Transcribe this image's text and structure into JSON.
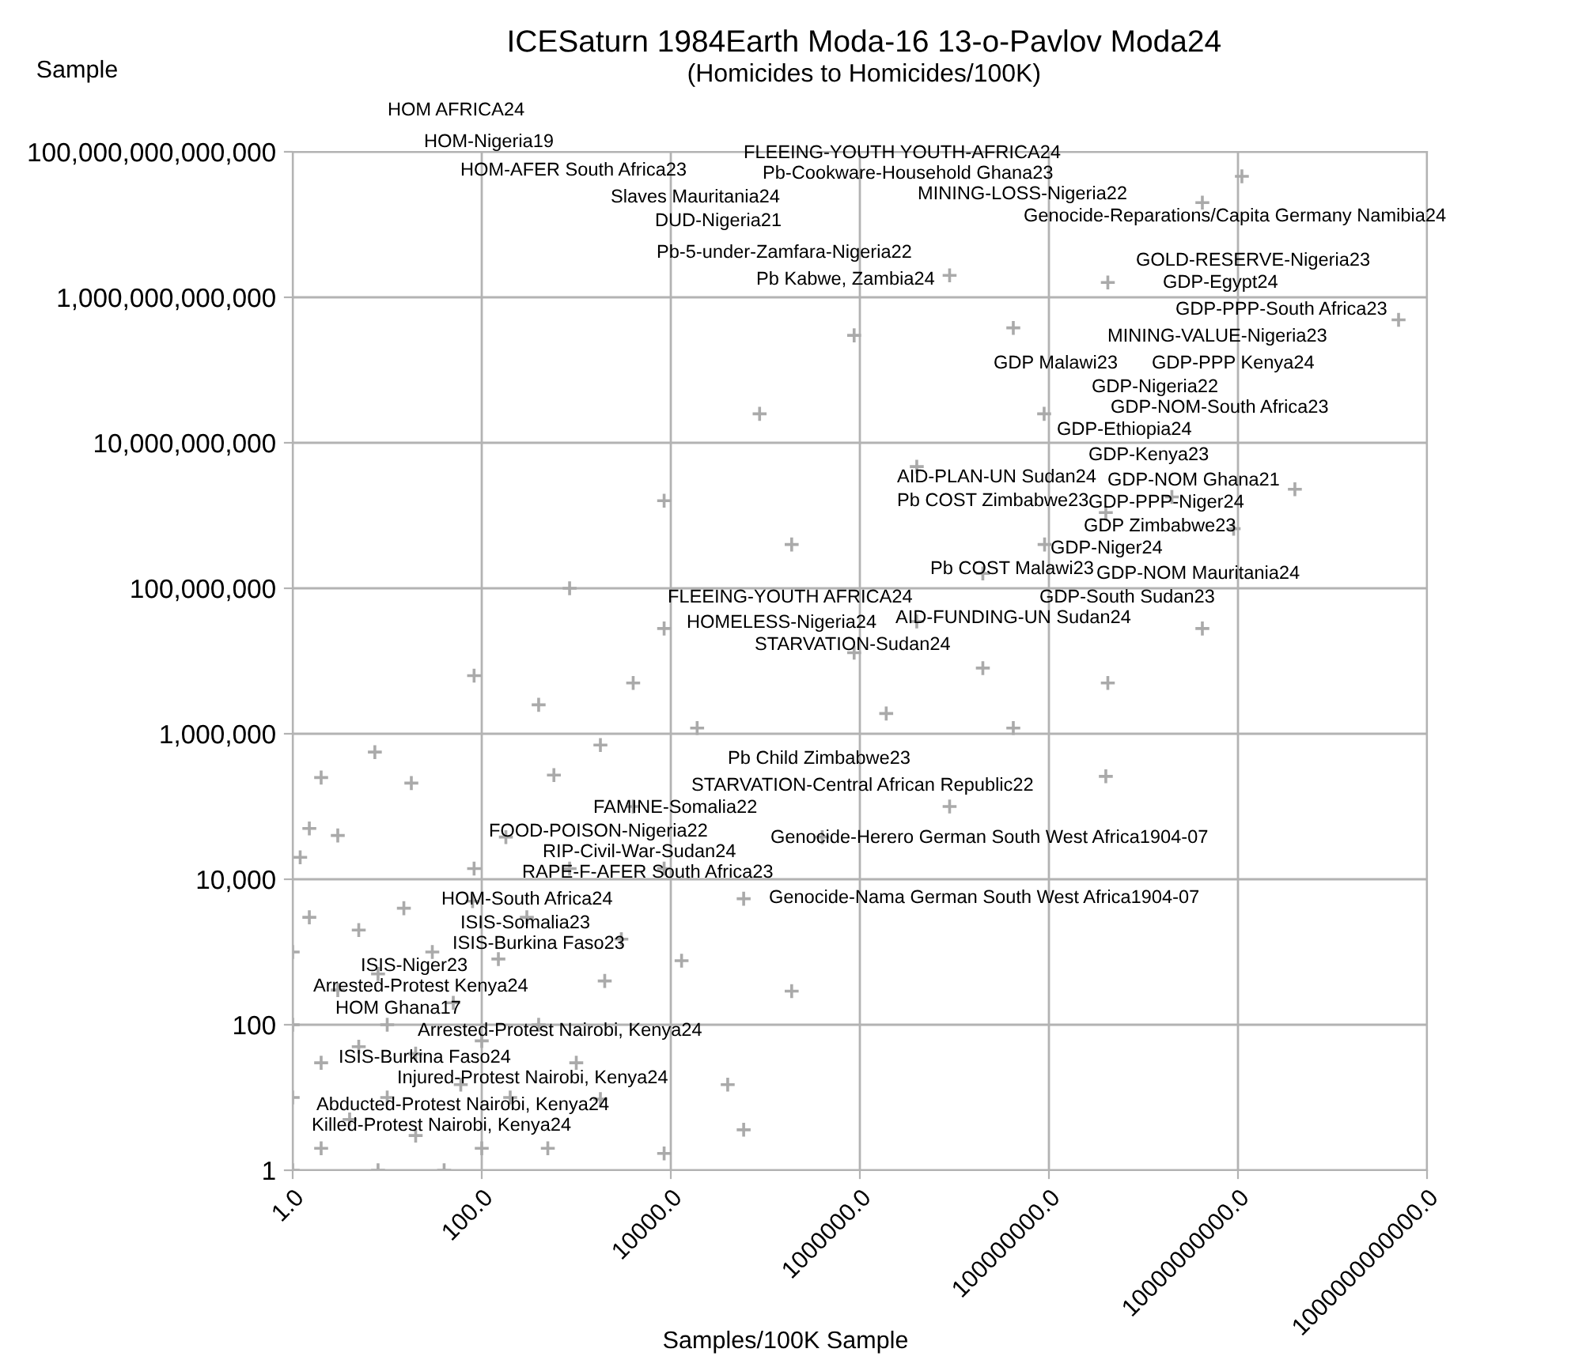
{
  "chart_data": {
    "type": "scatter",
    "title": "ICESaturn 1984Earth Moda-16 13-o-Pavlov Moda24",
    "subtitle": "(Homicides to Homicides/100K)",
    "xlabel": "Samples/100K Sample",
    "ylabel": "Sample",
    "log": "xy",
    "grid": true,
    "marker": "cross",
    "xlim": [
      1,
      1000000000000.0
    ],
    "xticks": [
      {
        "value": 1,
        "label": "1.0"
      },
      {
        "value": 100,
        "label": "100.0"
      },
      {
        "value": 10000,
        "label": "10000.0"
      },
      {
        "value": 1000000,
        "label": "1000000.0"
      },
      {
        "value": 100000000,
        "label": "100000000.0"
      },
      {
        "value": 10000000000,
        "label": "10000000000.0"
      },
      {
        "value": 1000000000000,
        "label": "1000000000000.0"
      }
    ],
    "ylim": [
      1,
      100000000000000.0
    ],
    "yticks": [
      {
        "value": 1,
        "label": "1"
      },
      {
        "value": 100,
        "label": "100"
      },
      {
        "value": 10000,
        "label": "10,000"
      },
      {
        "value": 1000000,
        "label": "1,000,000"
      },
      {
        "value": 100000000,
        "label": "100,000,000"
      },
      {
        "value": 10000000000,
        "label": "10,000,000,000"
      },
      {
        "value": 1000000000000,
        "label": "1,000,000,000,000"
      },
      {
        "value": 100000000000000,
        "label": "100,000,000,000,000"
      }
    ],
    "series": [
      {
        "color": "#aaaaaa",
        "x": [
          7.4,
          83,
          850,
          8500,
          87000,
          870000,
          8900000,
          18,
          400,
          8500,
          190000,
          4000000,
          89000000,
          42000000,
          420000000,
          4200000000,
          11000000000,
          500000000000,
          40000000000,
          9000000000,
          2000000000,
          400000000,
          90000000,
          20000000,
          4000000,
          870000,
          20000000,
          1900000,
          42000000,
          420000000,
          4200000000,
          8900000,
          400000000,
          400000,
          59000,
          13000,
          190000,
          40000,
          59000,
          8500,
          1800,
          4000,
          19000,
          1800,
          580,
          4000,
          180,
          850,
          8500,
          83,
          1,
          1,
          1,
          1,
          1.5,
          2,
          2,
          3,
          4,
          5,
          5,
          8,
          8,
          10,
          10,
          15,
          20,
          20,
          30,
          40,
          50,
          60,
          80,
          100,
          100,
          150,
          200,
          300,
          400,
          500,
          1000,
          2000,
          3000,
          1.2,
          3,
          2,
          1.5
        ],
        "values": [
          560000,
          6300000,
          100000000,
          1600000000,
          25000000000,
          300000000000,
          2000000000000,
          210000,
          2500000,
          28000000,
          400000000,
          4700000000,
          25000000000,
          380000000000,
          1600000000000,
          20000000000000,
          46000000000000,
          490000000000,
          2300000000,
          660000000,
          1800000000,
          1100000000,
          400000000,
          160000000,
          35000000,
          13000000,
          8000000,
          1900000,
          1200000,
          5000000,
          28000000,
          100000,
          260000,
          38000,
          5400,
          760,
          290,
          15,
          3.6,
          1.7,
          9.5,
          5000000,
          1200000,
          700000,
          270000,
          100000,
          38000,
          14000,
          14000,
          14000,
          1,
          10,
          100,
          1000,
          3000,
          2,
          30,
          300,
          5,
          50,
          2000,
          1,
          500,
          10,
          100,
          4000,
          3,
          40,
          1000,
          1,
          200,
          15,
          5000,
          2,
          60,
          800,
          10,
          3000,
          100,
          2,
          30,
          400,
          1500,
          20000,
          40000,
          250000,
          50000
        ]
      }
    ],
    "annotations": [
      "HOM AFRICA24",
      "HOM-Nigeria19",
      "HOM-AFER South Africa23",
      "Slaves Mauritania24",
      "DUD-Nigeria21",
      "Pb-5-under-Zamfara-Nigeria22",
      "Pb Kabwe, Zambia24",
      "FLEEING-YOUTH YOUTH-AFRICA24",
      "Pb-Cookware-Household Ghana23",
      "MINING-LOSS-Nigeria22",
      "Genocide-Reparations/Capita Germany Namibia24",
      "GOLD-RESERVE-Nigeria23",
      "GDP-Egypt24",
      "GDP-PPP-South Africa23",
      "MINING-VALUE-Nigeria23",
      "GDP-PPP Kenya24",
      "GDP-Nigeria22",
      "GDP-NOM-South Africa23",
      "GDP-Ethiopia24",
      "GDP-Kenya23",
      "GDP-NOM Ghana21",
      "GDP-PPP-Niger24",
      "GDP Zimbabwe23",
      "GDP-Niger24",
      "GDP Malawi23",
      "GDP-NOM Mauritania24",
      "GDP-South Sudan23",
      "AID-PLAN-UN Sudan24",
      "Pb COST Malawi23",
      "AID-FUNDING-UN Sudan24",
      "Pb COST Zimbabwe23",
      "FLEEING-YOUTH AFRICA24",
      "STARVATION-Sudan24",
      "HOMELESS-Nigeria24",
      "Pb Child Zimbabwe23",
      "STARVATION-Central African Republic22",
      "FAMINE-Somalia22",
      "FOOD-POISON-Nigeria22",
      "RIP-Civil-War-Sudan24",
      "Genocide-Herero German South West Africa1904-07",
      "RAPE-F-AFER South Africa23",
      "Genocide-Nama German South West Africa1904-07",
      "HOM-South Africa24",
      "ISIS-Somalia23",
      "ISIS-Burkina Faso23",
      "ISIS-Niger23",
      "Arrested-Protest Kenya24",
      "HOM Ghana17",
      "Arrested-Protest Nairobi, Kenya24",
      "ISIS-Burkina Faso24",
      "Injured-Protest Nairobi, Kenya24",
      "Abducted-Protest Nairobi, Kenya24",
      "Killed-Protest Nairobi, Kenya24"
    ]
  }
}
